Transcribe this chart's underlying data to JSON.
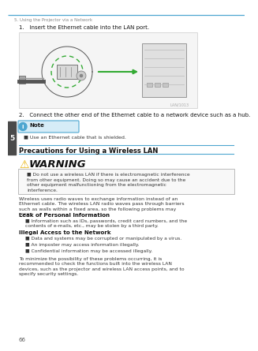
{
  "page_bg": "#ffffff",
  "header_text": "5. Using the Projector via a Network",
  "header_color": "#4da6d0",
  "step1_text": "1.   Insert the Ethernet cable into the LAN port.",
  "step2_text": "2.   Connect the other end of the Ethernet cable to a network device such as a hub.",
  "note_label": "Note",
  "note_bullet": "Use an Ethernet cable that is shielded.",
  "section_title": "Precautions for Using a Wireless LAN",
  "warning_title": "WARNING",
  "warning_bullet": "Do not use a wireless LAN if there is electromagnetic interference from other equipment. Doing so may cause an accident due to the other equipment malfunctioning from the electromagnetic interference.",
  "para1": "Wireless uses radio waves to exchange information instead of an Ethernet cable. The wireless LAN radio waves pass through barriers such as walls within a fixed area, so the following problems may occur:",
  "subhead1": "Leak of Personal Information",
  "sub1_bullet": "Information such as IDs, passwords, credit card numbers, and the contents of e-mails, etc., may be stolen by a third party.",
  "subhead2": "Illegal Access to the Network",
  "sub2_bullet1": "Data and systems may be corrupted or manipulated by a virus.",
  "sub2_bullet2": "An imposter may access information illegally.",
  "sub2_bullet3": "Confidential information may be accessed illegally.",
  "para2": "To minimize the possibility of these problems occurring, it is recommended to check the functions built into the wireless LAN devices, such as the projector and wireless LAN access points, and to specify security settings.",
  "page_num": "66",
  "tab_color": "#4a4a4a",
  "tab_num": "5",
  "section_line_color": "#4da6d0",
  "warning_border_color": "#bbbbbb",
  "note_bg": "#d6ecf7",
  "note_border_color": "#4da6d0",
  "text_color": "#333333",
  "bold_color": "#111111"
}
